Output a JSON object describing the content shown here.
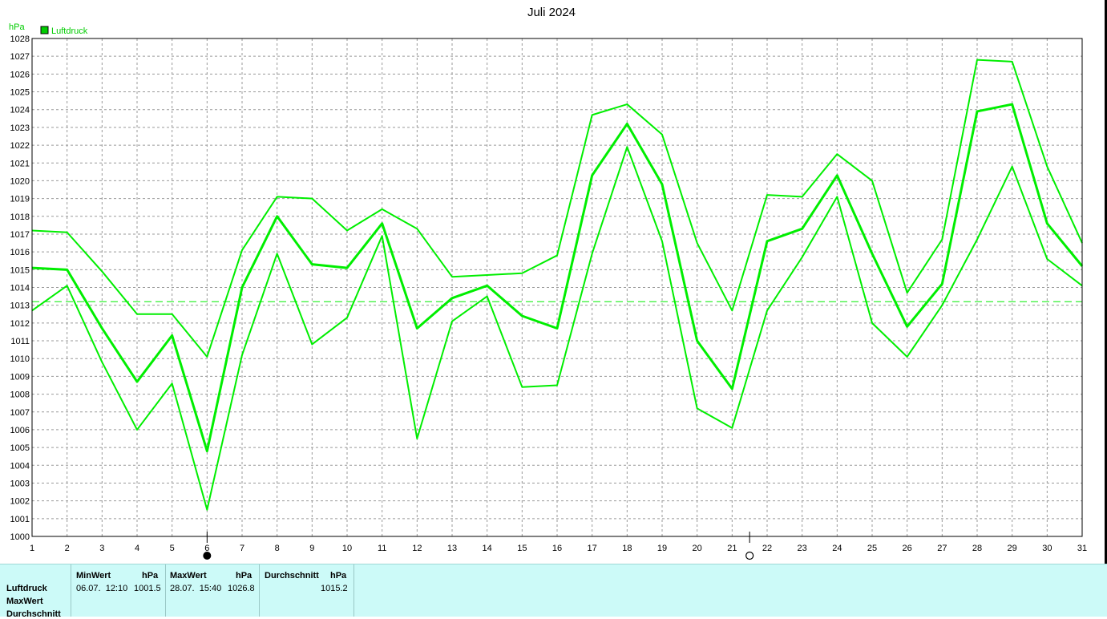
{
  "chart_data": {
    "type": "line",
    "title": "Juli 2024",
    "ylabel": "hPa",
    "legend": {
      "entries": [
        "Luftdruck"
      ],
      "placement": "top-left",
      "color": "#00cc00"
    },
    "ylim": [
      1000,
      1028
    ],
    "yticks": [
      1000,
      1001,
      1002,
      1003,
      1004,
      1005,
      1006,
      1007,
      1008,
      1009,
      1010,
      1011,
      1012,
      1013,
      1014,
      1015,
      1016,
      1017,
      1018,
      1019,
      1020,
      1021,
      1022,
      1023,
      1024,
      1025,
      1026,
      1027,
      1028
    ],
    "x": [
      1,
      2,
      3,
      4,
      5,
      6,
      7,
      8,
      9,
      10,
      11,
      12,
      13,
      14,
      15,
      16,
      17,
      18,
      19,
      20,
      21,
      22,
      23,
      24,
      25,
      26,
      27,
      28,
      29,
      30,
      31
    ],
    "series": [
      {
        "name": "MaxWert",
        "values": [
          1017.2,
          1017.1,
          1014.9,
          1012.5,
          1012.5,
          1010.1,
          1016.1,
          1019.1,
          1019.0,
          1017.2,
          1018.4,
          1017.3,
          1014.6,
          1014.7,
          1014.8,
          1015.8,
          1023.7,
          1024.3,
          1022.6,
          1016.5,
          1012.7,
          1019.2,
          1019.1,
          1021.5,
          1020.0,
          1013.7,
          1016.7,
          1026.8,
          1026.7,
          1020.8,
          1016.5
        ]
      },
      {
        "name": "Durchschnitt",
        "values": [
          1015.1,
          1015.0,
          1011.7,
          1008.7,
          1011.3,
          1004.8,
          1014.0,
          1018.0,
          1015.3,
          1015.1,
          1017.6,
          1011.7,
          1013.4,
          1014.1,
          1012.4,
          1011.7,
          1020.3,
          1023.2,
          1019.8,
          1011.0,
          1008.3,
          1016.6,
          1017.3,
          1020.3,
          1015.9,
          1011.8,
          1014.2,
          1023.9,
          1024.3,
          1017.6,
          1015.2
        ]
      },
      {
        "name": "MinWert",
        "values": [
          1012.7,
          1014.1,
          1009.8,
          1006.0,
          1008.6,
          1001.5,
          1010.2,
          1015.9,
          1010.8,
          1012.3,
          1016.9,
          1005.5,
          1012.1,
          1013.5,
          1008.4,
          1008.5,
          1015.9,
          1021.9,
          1016.6,
          1007.2,
          1006.1,
          1012.7,
          1015.7,
          1019.1,
          1012.0,
          1010.1,
          1013.0,
          1016.7,
          1020.8,
          1015.6,
          1014.1
        ]
      }
    ],
    "reference_line": {
      "value": 1013.2,
      "style": "dashed"
    },
    "markers": [
      {
        "x": 6,
        "symbol": "filled-circle"
      },
      {
        "x": 21.5,
        "symbol": "open-circle"
      }
    ],
    "grid": true,
    "line_color": "#00ee00"
  },
  "stats": {
    "row_labels": [
      "Luftdruck",
      "MaxWert",
      "Durchschnitt"
    ],
    "min": {
      "header": "MinWert",
      "unit": "hPa",
      "date": "06.07.  12:10",
      "value": "1001.5"
    },
    "max": {
      "header": "MaxWert",
      "unit": "hPa",
      "date": "28.07.  15:40",
      "value": "1026.8"
    },
    "avg": {
      "header": "Durchschnitt",
      "unit": "hPa",
      "value": "1015.2"
    }
  }
}
